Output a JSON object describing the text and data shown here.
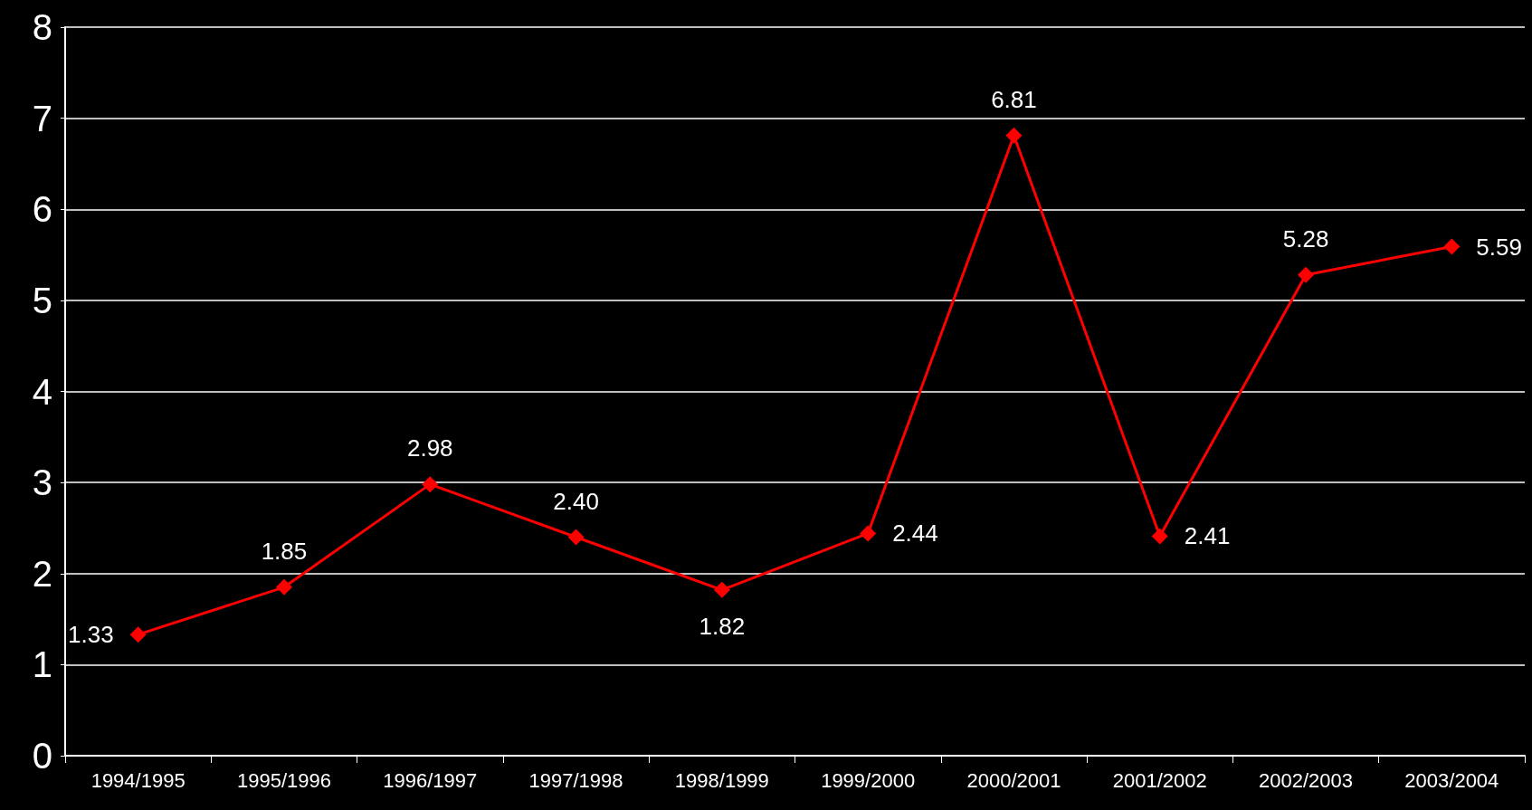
{
  "chart_data": {
    "type": "line",
    "categories": [
      "1994/1995",
      "1995/1996",
      "1996/1997",
      "1997/1998",
      "1998/1999",
      "1999/2000",
      "2000/2001",
      "2001/2002",
      "2002/2003",
      "2003/2004"
    ],
    "series": [
      {
        "color": "#ff0000",
        "values": [
          1.33,
          1.85,
          2.98,
          2.4,
          1.82,
          2.44,
          6.81,
          2.41,
          5.28,
          5.59
        ],
        "value_labels": [
          "1.33",
          "1.85",
          "2.98",
          "2.40",
          "1.82",
          "2.44",
          "6.81",
          "2.41",
          "5.28",
          "5.59"
        ]
      }
    ],
    "ylim": [
      0,
      8
    ],
    "yticks": [
      0,
      1,
      2,
      3,
      4,
      5,
      6,
      7,
      8
    ],
    "grid": "y",
    "marker": "diamond",
    "line_style": "solid"
  }
}
